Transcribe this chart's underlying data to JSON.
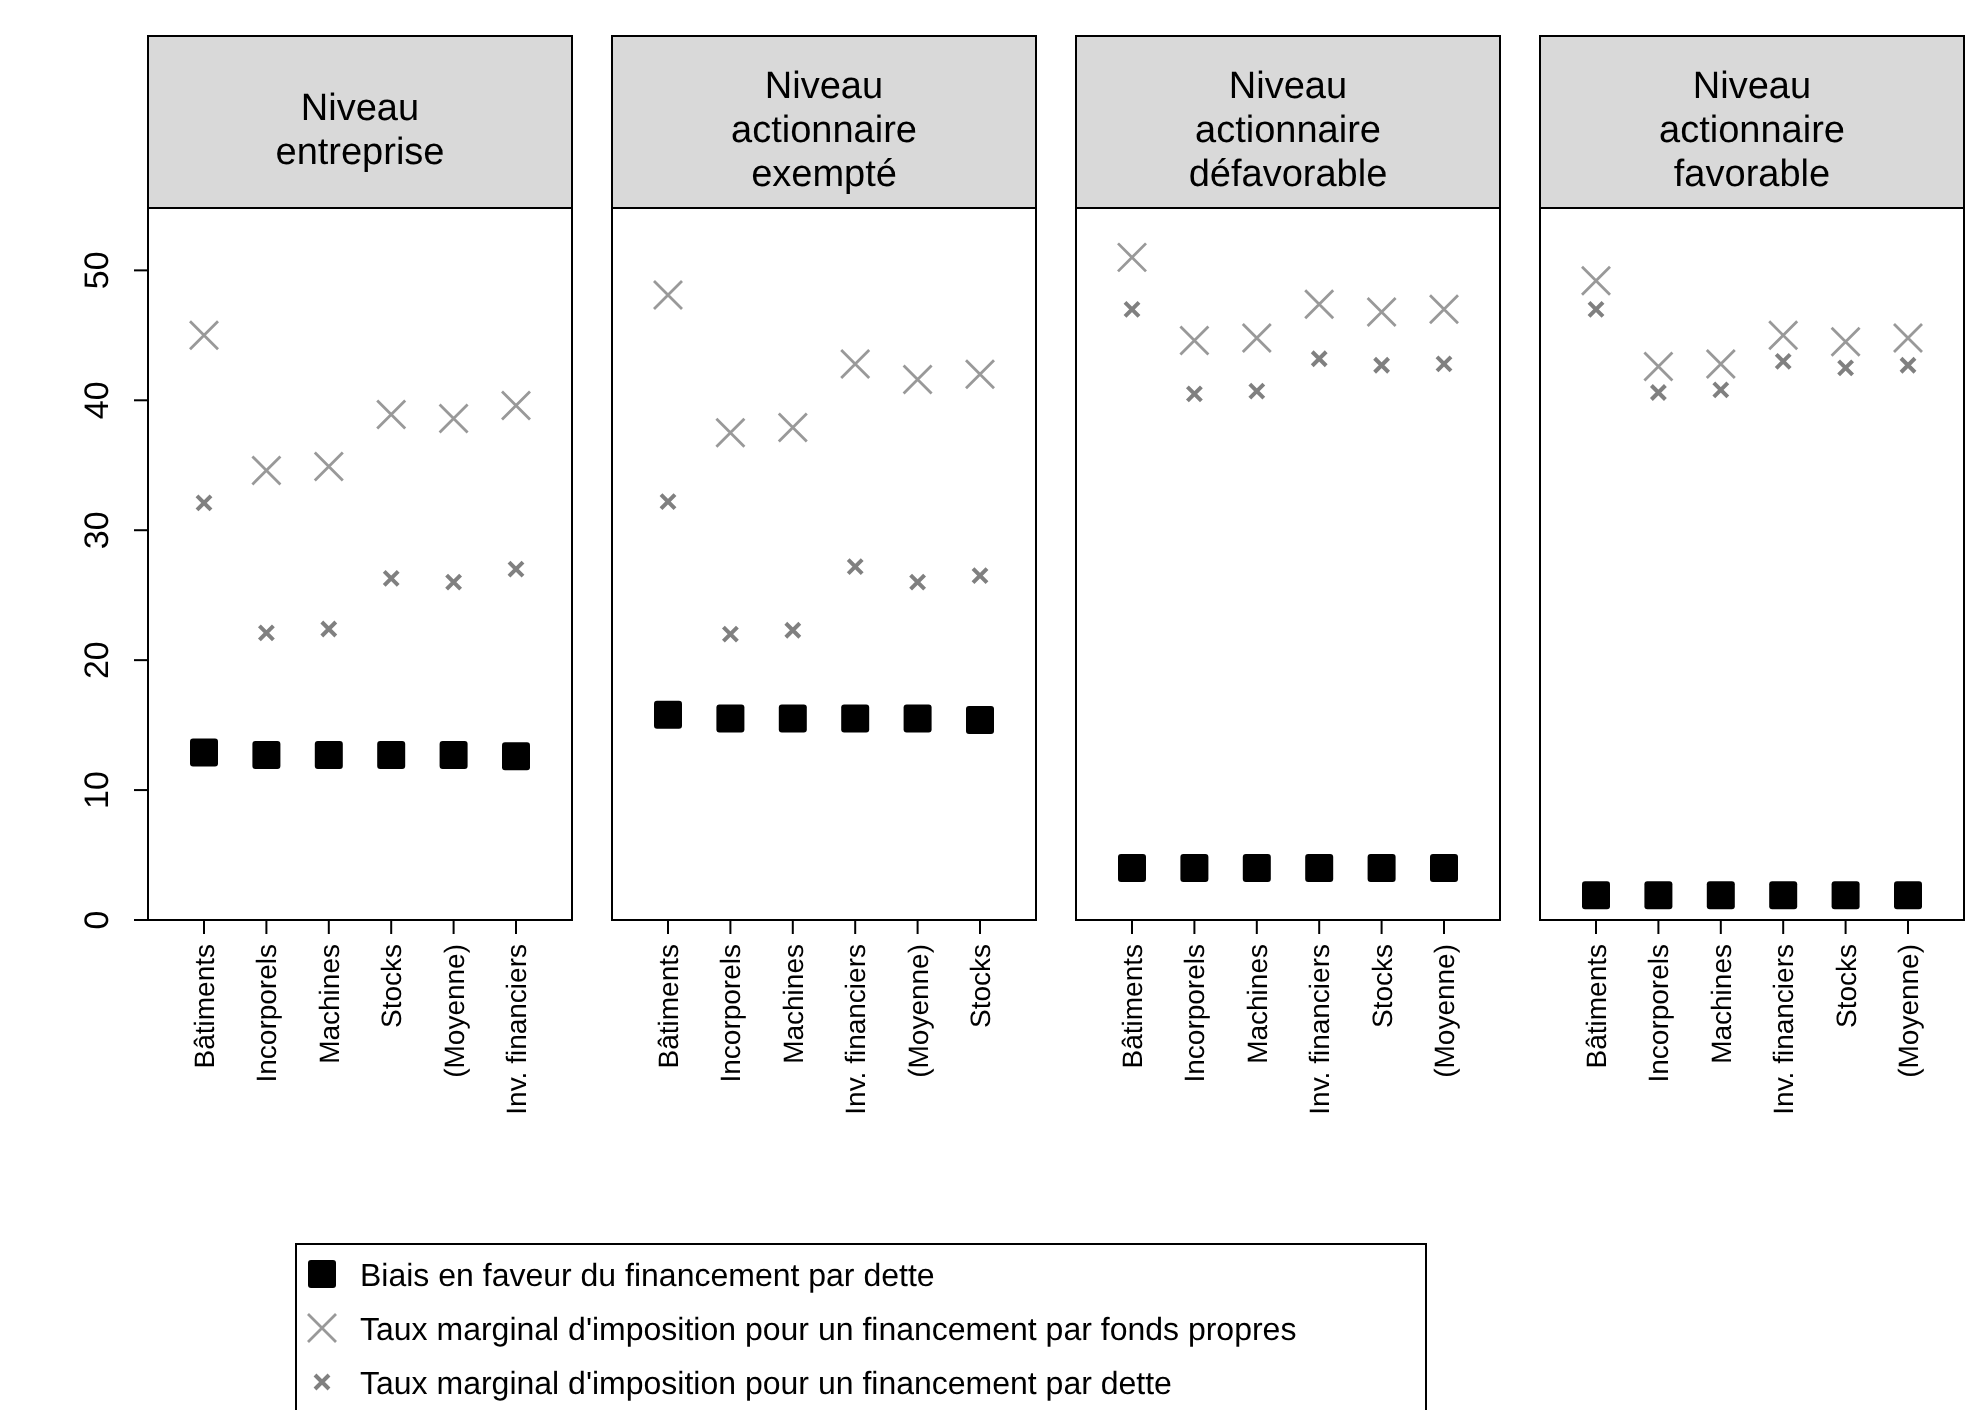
{
  "chart_data": [
    {
      "type": "scatter",
      "title": "Niveau entreprise",
      "categories": [
        "Bâtiments",
        "Incorporels",
        "Machines",
        "Stocks",
        "(Moyenne)",
        "Inv. financiers"
      ],
      "ylim": [
        0,
        54.8
      ],
      "yticks": [
        0,
        10,
        20,
        30,
        40,
        50
      ],
      "legend": "bottom",
      "grid": false,
      "series": [
        {
          "name": "Biais en faveur du financement par dette",
          "color": "#000000",
          "marker": "square",
          "values": [
            12.9,
            12.7,
            12.7,
            12.7,
            12.7,
            12.6
          ]
        },
        {
          "name": "Taux marginal d'imposition pour un financement par fonds propres",
          "color": "#999999",
          "marker": "cross",
          "values": [
            45.0,
            34.6,
            34.9,
            38.9,
            38.6,
            39.6
          ]
        },
        {
          "name": "Taux marginal d'imposition pour un financement par dette",
          "color": "#808080",
          "marker": "cross",
          "values": [
            32.1,
            22.1,
            22.4,
            26.3,
            26.0,
            27.0
          ]
        }
      ]
    },
    {
      "type": "scatter",
      "title": "Niveau actionnaire exempté",
      "categories": [
        "Bâtiments",
        "Incorporels",
        "Machines",
        "Inv. financiers",
        "(Moyenne)",
        "Stocks"
      ],
      "ylim": [
        0,
        54.8
      ],
      "tick_labels": "x",
      "grid": false,
      "series": [
        {
          "color": "#000000",
          "marker": "square",
          "values": [
            15.8,
            15.5,
            15.5,
            15.5,
            15.5,
            15.4
          ]
        },
        {
          "color": "#999999",
          "marker": "cross",
          "values": [
            48.1,
            37.5,
            37.9,
            42.8,
            41.6,
            42.0
          ]
        },
        {
          "color": "#808080",
          "marker": "cross",
          "values": [
            32.2,
            22.0,
            22.3,
            27.2,
            26.0,
            26.5
          ]
        }
      ]
    },
    {
      "type": "scatter",
      "title": "Niveau actionnaire défavorable",
      "categories": [
        "Bâtiments",
        "Incorporels",
        "Machines",
        "Inv. financiers",
        "Stocks",
        "(Moyenne)"
      ],
      "ylim": [
        0,
        54.8
      ],
      "tick_labels": "x",
      "grid": false,
      "series": [
        {
          "color": "#000000",
          "marker": "square",
          "values": [
            4.0,
            4.0,
            4.0,
            4.0,
            4.0,
            4.0
          ]
        },
        {
          "color": "#999999",
          "marker": "cross",
          "values": [
            51.0,
            44.6,
            44.8,
            47.4,
            46.8,
            47.0
          ]
        },
        {
          "color": "#808080",
          "marker": "cross",
          "values": [
            47.0,
            40.5,
            40.7,
            43.2,
            42.7,
            42.8
          ]
        }
      ]
    },
    {
      "type": "scatter",
      "title": "Niveau actionnaire favorable",
      "categories": [
        "Bâtiments",
        "Incorporels",
        "Machines",
        "Inv. financiers",
        "Stocks",
        "(Moyenne)"
      ],
      "ylim": [
        0,
        54.8
      ],
      "tick_labels": "x",
      "grid": false,
      "series": [
        {
          "color": "#000000",
          "marker": "square",
          "values": [
            1.9,
            1.9,
            1.9,
            1.9,
            1.9,
            1.9
          ]
        },
        {
          "color": "#999999",
          "marker": "cross",
          "values": [
            49.2,
            42.6,
            42.8,
            45.0,
            44.5,
            44.8
          ]
        },
        {
          "color": "#808080",
          "marker": "cross",
          "values": [
            47.0,
            40.6,
            40.8,
            43.0,
            42.5,
            42.7
          ]
        }
      ]
    }
  ]
}
